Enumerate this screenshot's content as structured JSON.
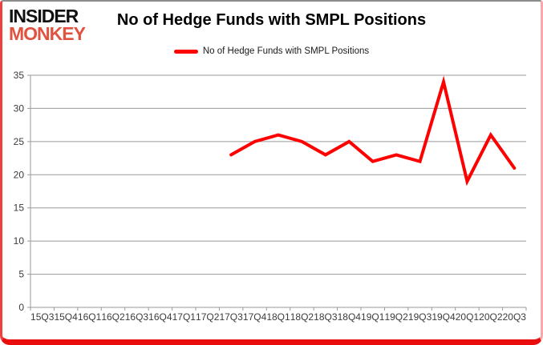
{
  "logo": {
    "line1": "INSIDER",
    "line2": "MONKEY",
    "accent_color": "#df5340"
  },
  "header": {
    "title": "No of Hedge Funds with SMPL Positions"
  },
  "legend": {
    "label": "No of Hedge Funds with SMPL Positions",
    "swatch_color": "#ff0000"
  },
  "chart_data": {
    "type": "line",
    "title": "No of Hedge Funds with SMPL Positions",
    "categories": [
      "15Q3",
      "15Q4",
      "16Q1",
      "16Q2",
      "16Q3",
      "16Q4",
      "17Q1",
      "17Q2",
      "17Q3",
      "17Q4",
      "18Q1",
      "18Q2",
      "18Q3",
      "18Q4",
      "19Q1",
      "19Q2",
      "19Q3",
      "19Q4",
      "20Q1",
      "20Q2",
      "20Q3"
    ],
    "series": [
      {
        "name": "No of Hedge Funds with SMPL Positions",
        "color": "#ff0000",
        "values": [
          null,
          null,
          null,
          null,
          null,
          null,
          null,
          null,
          23,
          25,
          26,
          25,
          23,
          25,
          22,
          23,
          22,
          34,
          19,
          26,
          21
        ]
      }
    ],
    "xlabel": "",
    "ylabel": "",
    "ylim": [
      0,
      35
    ],
    "yticks": [
      0,
      5,
      10,
      15,
      20,
      25,
      30,
      35
    ],
    "grid": true,
    "legend_position": "top-center",
    "grid_color": "#9a9a9a",
    "axis_color": "#9a9a9a",
    "axis_label_color": "#3b3b3b"
  },
  "frame": {
    "border_top_color": "#8c8c8c",
    "border_accent_color": "#ea0d0d"
  }
}
